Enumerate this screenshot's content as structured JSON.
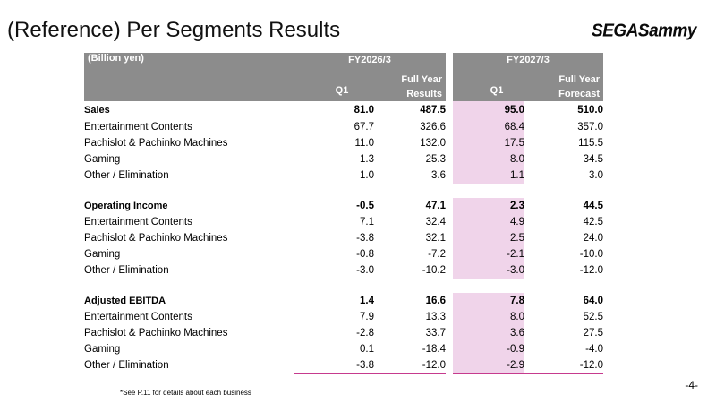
{
  "page": {
    "title": "(Reference) Per Segments Results",
    "logo_text": "SEGASammy",
    "page_number": "-4-",
    "footnote": "*See P.11 for details about each business"
  },
  "table": {
    "unit_label": "(Billion yen)",
    "period_a": "FY2026/3",
    "period_b": "FY2027/3",
    "col_q1": "Q1",
    "col_full_a_line1": "Full Year",
    "col_full_a_line2": "Results",
    "col_q1_b": "Q1",
    "col_full_b_line1": "Full Year",
    "col_full_b_line2": "Forecast",
    "highlight_color": "#f0d4ea",
    "sections": [
      {
        "name": "Sales",
        "total": [
          "81.0",
          "487.5",
          "95.0",
          "510.0"
        ],
        "rows": [
          {
            "label": "Entertainment Contents",
            "values": [
              "67.7",
              "326.6",
              "68.4",
              "357.0"
            ]
          },
          {
            "label": "Pachislot & Pachinko Machines",
            "values": [
              "11.0",
              "132.0",
              "17.5",
              "115.5"
            ]
          },
          {
            "label": "Gaming",
            "values": [
              "1.3",
              "25.3",
              "8.0",
              "34.5"
            ]
          },
          {
            "label": "Other / Elimination",
            "values": [
              "1.0",
              "3.6",
              "1.1",
              "3.0"
            ]
          }
        ]
      },
      {
        "name": "Operating Income",
        "total": [
          "-0.5",
          "47.1",
          "2.3",
          "44.5"
        ],
        "rows": [
          {
            "label": "Entertainment Contents",
            "values": [
              "7.1",
              "32.4",
              "4.9",
              "42.5"
            ]
          },
          {
            "label": "Pachislot & Pachinko Machines",
            "values": [
              "-3.8",
              "32.1",
              "2.5",
              "24.0"
            ]
          },
          {
            "label": "Gaming",
            "values": [
              "-0.8",
              "-7.2",
              "-2.1",
              "-10.0"
            ]
          },
          {
            "label": "Other / Elimination",
            "values": [
              "-3.0",
              "-10.2",
              "-3.0",
              "-12.0"
            ]
          }
        ]
      },
      {
        "name": "Adjusted EBITDA",
        "total": [
          "1.4",
          "16.6",
          "7.8",
          "64.0"
        ],
        "rows": [
          {
            "label": "Entertainment Contents",
            "values": [
              "7.9",
              "13.3",
              "8.0",
              "52.5"
            ]
          },
          {
            "label": "Pachislot & Pachinko Machines",
            "values": [
              "-2.8",
              "33.7",
              "3.6",
              "27.5"
            ]
          },
          {
            "label": "Gaming",
            "values": [
              "0.1",
              "-18.4",
              "-0.9",
              "-4.0"
            ]
          },
          {
            "label": "Other / Elimination",
            "values": [
              "-3.8",
              "-12.0",
              "-2.9",
              "-12.0"
            ]
          }
        ]
      }
    ]
  }
}
